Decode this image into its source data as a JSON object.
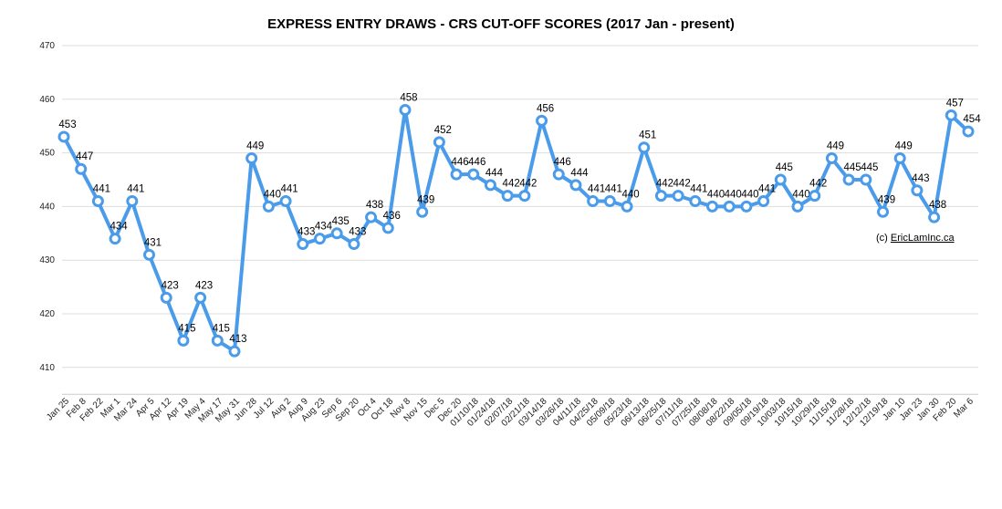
{
  "chart_data": {
    "type": "line",
    "title": "EXPRESS ENTRY DRAWS - CRS CUT-OFF SCORES (2017 Jan - present)",
    "xlabel": "",
    "ylabel": "",
    "ylim": [
      405,
      470
    ],
    "yticks": [
      410,
      420,
      430,
      440,
      450,
      460,
      470
    ],
    "grid": true,
    "legend": "none",
    "line_color": "#4A9BEA",
    "credit_prefix": "(c) ",
    "credit_link": "EricLamInc.ca",
    "categories": [
      "Jan 25",
      "Feb 8",
      "Feb 22",
      "Mar 1",
      "Mar 24",
      "Apr 5",
      "Apr 12",
      "Apr 19",
      "May 4",
      "May 17",
      "May 31",
      "Jun 28",
      "Jul 12",
      "Aug 2",
      "Aug 9",
      "Aug 23",
      "Sep 6",
      "Sep 20",
      "Oct 4",
      "Oct 18",
      "Nov 8",
      "Nov 15",
      "Dec 5",
      "Dec 20",
      "01/10/18",
      "01/24/18",
      "02/07/18",
      "02/21/18",
      "03/14/18",
      "03/26/18",
      "04/11/18",
      "04/25/18",
      "05/09/18",
      "05/23/18",
      "06/13/18",
      "06/25/18",
      "07/11/18",
      "07/25/18",
      "08/08/18",
      "08/22/18",
      "09/05/18",
      "09/19/18",
      "10/03/18",
      "10/15/18",
      "10/29/18",
      "11/15/18",
      "11/28/18",
      "12/12/18",
      "12/19/18",
      "Jan 10",
      "Jan 23",
      "Jan 30",
      "Feb 20",
      "Mar 6"
    ],
    "values": [
      453,
      447,
      441,
      434,
      441,
      431,
      423,
      415,
      423,
      415,
      413,
      449,
      440,
      441,
      433,
      434,
      435,
      433,
      438,
      436,
      458,
      439,
      452,
      446,
      446,
      444,
      442,
      442,
      456,
      446,
      444,
      441,
      441,
      440,
      451,
      442,
      442,
      441,
      440,
      440,
      440,
      441,
      445,
      440,
      442,
      449,
      445,
      445,
      439,
      449,
      443,
      438,
      457,
      454
    ]
  }
}
